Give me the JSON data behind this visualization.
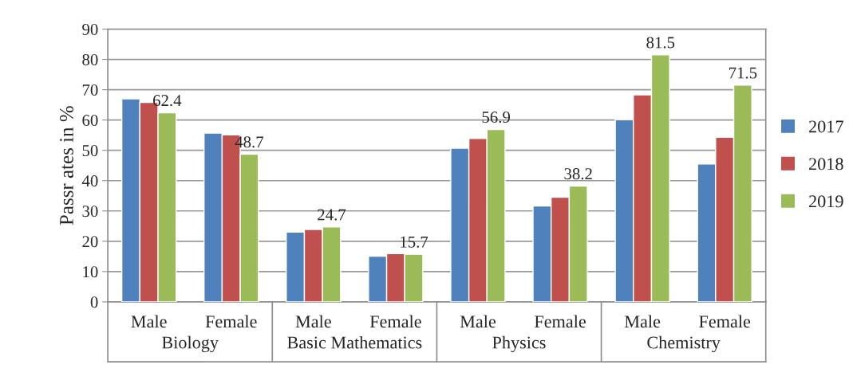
{
  "chart_data": {
    "type": "bar",
    "ylabel": "Passr ates in %",
    "categories": [
      "Male",
      "Female",
      "Male",
      "Female",
      "Male",
      "Female",
      "Male",
      "Female"
    ],
    "series": [
      {
        "name": "2017",
        "color": "#4f81bd",
        "values": [
          67,
          55.7,
          23,
          15.1,
          50.7,
          31.6,
          60.1,
          45.5
        ]
      },
      {
        "name": "2018",
        "color": "#c0504d",
        "values": [
          65.8,
          55.1,
          23.9,
          15.9,
          53.9,
          34.5,
          68.3,
          54.3
        ]
      },
      {
        "name": "2019",
        "color": "#9bbb59",
        "values": [
          62.4,
          48.7,
          24.7,
          15.7,
          56.9,
          38.2,
          81.5,
          71.5
        ],
        "value_labels": [
          "62.4",
          "48.7",
          "24.7",
          "15.7",
          "56.9",
          "38.2",
          "81.5",
          "71.5"
        ]
      }
    ],
    "annotations": [
      "Biology",
      "Basic Mathematics",
      "Physics",
      "Chemistry"
    ],
    "ylim": [
      0,
      90
    ],
    "yticks": [
      0,
      10,
      20,
      30,
      40,
      50,
      60,
      70,
      80,
      90
    ],
    "grid": "y",
    "legend": "right"
  }
}
